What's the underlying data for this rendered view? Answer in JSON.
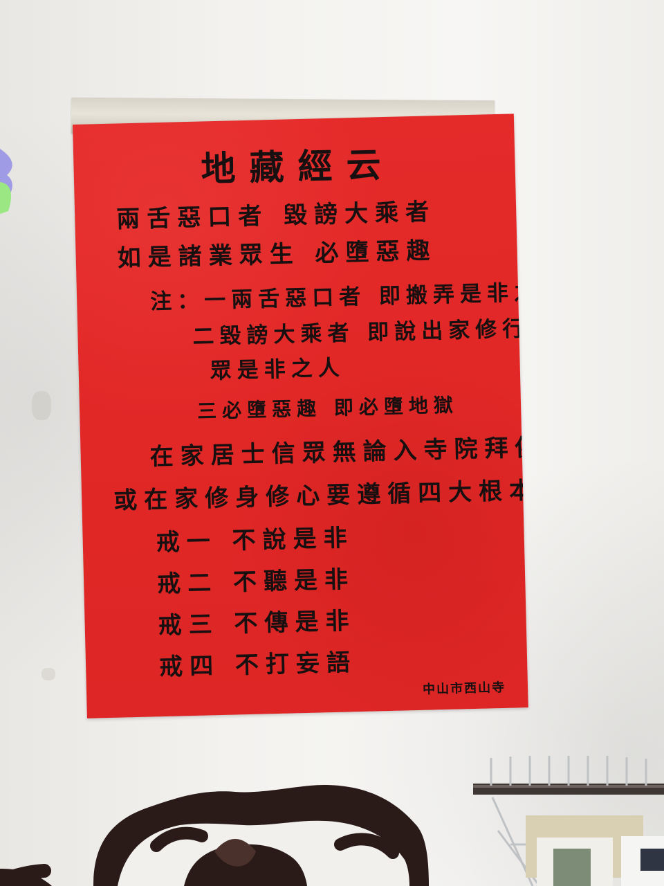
{
  "poster": {
    "title": "地藏經云",
    "line1": "兩舌惡口者 毀謗大乘者",
    "line2": "如是諸業眾生 必墮惡趣",
    "note1": "注：一兩舌惡口者 即搬弄是非之人",
    "note2": "二毀謗大乘者 即說出家修行僧",
    "note3": "眾是非之人",
    "note4": "三必墮惡趣 即必墮地獄",
    "line3": "在家居士信眾無論入寺院拜佛",
    "line4": "或在家修身修心要遵循四大根本戒",
    "rule1": "戒一 不說是非",
    "rule2": "戒二 不聽是非",
    "rule3": "戒三 不傳是非",
    "rule4": "戒四 不打妄語",
    "footer": "中山市西山寺"
  },
  "colors": {
    "poster_red": "#e22827",
    "ink": "#181010",
    "wall": "#f3f2ef",
    "furniture": "#2a1b18"
  },
  "icons": {
    "chair_back": "ornate-chair-icon",
    "rack": "metal-rack-icon",
    "decor": "leaf-decoration-icon"
  }
}
